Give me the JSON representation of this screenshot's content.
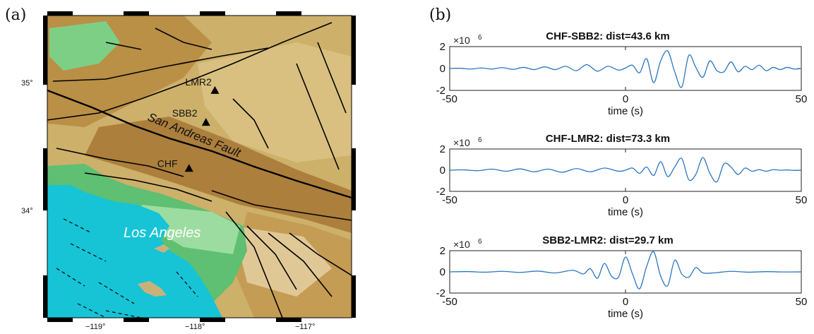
{
  "panels": {
    "map": {
      "label": "(a)",
      "lat_ticks": [
        "35°",
        "34°"
      ],
      "lon_ticks": [
        "−119°",
        "−118°",
        "−117°"
      ],
      "stations": [
        {
          "name": "LMR2",
          "lon": -117.77,
          "lat": 34.94
        },
        {
          "name": "SBB2",
          "lon": -117.86,
          "lat": 34.69
        },
        {
          "name": "CHF",
          "lon": -118.03,
          "lat": 34.33
        }
      ],
      "fault_label": "San Andreas Fault",
      "city_label": "Los Angeles",
      "colors": {
        "ocean": "#16c4d6",
        "lowland": "#7ecf86",
        "desert": "#d8c07a",
        "mountain": "#b98e47",
        "fault": "#000000",
        "station": "#000000"
      }
    },
    "seismograms": {
      "label": "(b)",
      "color_line": "#2a76c1"
    }
  },
  "chart_data": [
    {
      "type": "line",
      "title": "CHF-SBB2: dist=43.6 km",
      "xlabel": "time (s)",
      "ylabel": "",
      "exponent_label": "×10",
      "exponent_sup": "6",
      "xlim": [
        -50,
        50
      ],
      "ylim": [
        -2,
        2
      ],
      "xticks": [
        -50,
        0,
        50
      ],
      "yticks": [
        2,
        0,
        -2
      ],
      "series": [
        {
          "x": [
            -50,
            -47,
            -44,
            -41,
            -38,
            -35,
            -32,
            -29,
            -26,
            -23,
            -20,
            -17,
            -14,
            -11,
            -8,
            -5,
            -2,
            0,
            2,
            4,
            6,
            8,
            10,
            12,
            14,
            16,
            18,
            20,
            22,
            24,
            26,
            28,
            30,
            32,
            34,
            36,
            38,
            40,
            42,
            44,
            46,
            48,
            50
          ],
          "values": [
            0.0,
            0.02,
            -0.05,
            0.05,
            -0.05,
            0.08,
            -0.08,
            0.1,
            -0.1,
            0.15,
            -0.1,
            0.2,
            -0.2,
            0.35,
            -0.25,
            0.2,
            -0.15,
            0.05,
            0.3,
            -0.4,
            0.9,
            -1.3,
            0.7,
            1.6,
            -0.3,
            -1.7,
            1.2,
            0.1,
            -0.8,
            0.7,
            -0.2,
            -0.3,
            0.6,
            -0.3,
            0.2,
            -0.1,
            0.3,
            -0.2,
            0.1,
            -0.1,
            0.1,
            -0.05,
            0.0
          ]
        }
      ]
    },
    {
      "type": "line",
      "title": "CHF-LMR2: dist=73.3 km",
      "xlabel": "time (s)",
      "ylabel": "",
      "exponent_label": "×10",
      "exponent_sup": "6",
      "xlim": [
        -50,
        50
      ],
      "ylim": [
        -2,
        2
      ],
      "xticks": [
        -50,
        0,
        50
      ],
      "yticks": [
        2,
        0,
        -2
      ],
      "series": [
        {
          "x": [
            -50,
            -46,
            -42,
            -38,
            -34,
            -30,
            -26,
            -22,
            -18,
            -14,
            -10,
            -6,
            -2,
            0,
            2,
            4,
            6,
            8,
            10,
            12,
            14,
            16,
            18,
            20,
            22,
            24,
            26,
            28,
            30,
            32,
            34,
            36,
            38,
            40,
            42,
            44,
            46,
            48,
            50
          ],
          "values": [
            0.0,
            0.03,
            -0.05,
            0.1,
            -0.1,
            0.12,
            -0.15,
            0.1,
            -0.2,
            0.15,
            -0.15,
            0.2,
            -0.1,
            0.0,
            0.2,
            -0.3,
            0.3,
            -0.5,
            0.8,
            -0.6,
            0.3,
            1.1,
            -0.9,
            -0.4,
            1.2,
            -0.3,
            -1.1,
            0.6,
            0.3,
            -0.4,
            0.2,
            -0.1,
            0.05,
            -0.1,
            0.05,
            0.0,
            0.02,
            -0.02,
            0.0
          ]
        }
      ]
    },
    {
      "type": "line",
      "title": "SBB2-LMR2: dist=29.7 km",
      "xlabel": "time (s)",
      "ylabel": "",
      "exponent_label": "×10",
      "exponent_sup": "6",
      "xlim": [
        -50,
        50
      ],
      "ylim": [
        -2,
        2
      ],
      "xticks": [
        -50,
        0,
        50
      ],
      "yticks": [
        2,
        0,
        -2
      ],
      "series": [
        {
          "x": [
            -50,
            -45,
            -40,
            -35,
            -30,
            -25,
            -20,
            -15,
            -12,
            -10,
            -8,
            -6,
            -4,
            -2,
            0,
            2,
            4,
            6,
            8,
            10,
            12,
            14,
            16,
            18,
            20,
            22,
            25,
            30,
            35,
            40,
            45,
            50
          ],
          "values": [
            0.0,
            0.03,
            -0.03,
            0.05,
            -0.05,
            0.07,
            -0.1,
            0.15,
            -0.2,
            0.3,
            -0.6,
            0.8,
            -0.4,
            -0.5,
            1.4,
            -0.2,
            -1.6,
            0.5,
            1.9,
            -0.4,
            -1.3,
            1.1,
            -0.2,
            -0.5,
            0.4,
            -0.1,
            -0.1,
            0.05,
            -0.03,
            0.02,
            -0.01,
            0.0
          ]
        }
      ]
    }
  ]
}
